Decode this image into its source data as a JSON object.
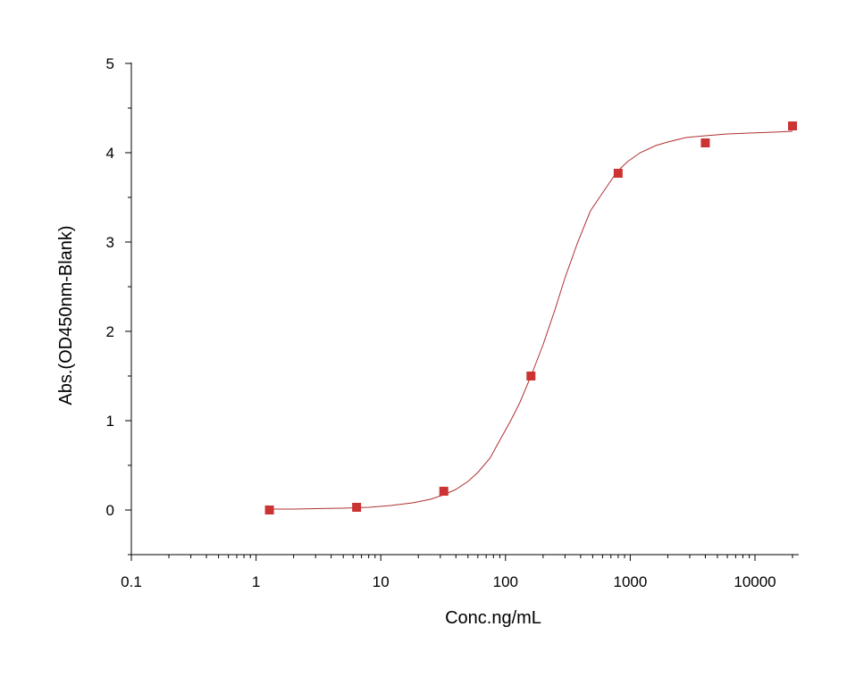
{
  "chart_data": {
    "type": "scatter",
    "xlabel": "Conc.ng/mL",
    "ylabel": "Abs.(OD450nm-Blank)",
    "x_scale": "log",
    "xlim": [
      0.1,
      20000
    ],
    "ylim": [
      -0.5,
      5
    ],
    "x_ticks": [
      0.1,
      1,
      10,
      100,
      1000,
      10000
    ],
    "x_tick_labels": [
      "0.1",
      "1",
      "10",
      "100",
      "1000",
      "10000"
    ],
    "y_ticks": [
      0,
      1,
      2,
      3,
      4,
      5
    ],
    "y_tick_labels": [
      "0",
      "1",
      "2",
      "3",
      "4",
      "5"
    ],
    "grid": false,
    "colors": {
      "points": "#cc3333",
      "curve": "#b03030",
      "axes": "#000000"
    },
    "series": [
      {
        "kind": "points",
        "x": [
          1.28,
          6.4,
          32,
          160,
          800,
          4000,
          20000
        ],
        "y": [
          0.0,
          0.03,
          0.21,
          1.5,
          3.77,
          4.11,
          4.3
        ]
      },
      {
        "kind": "fitted-curve",
        "x": [
          1.28,
          2,
          3,
          5,
          8,
          12,
          18,
          25,
          32,
          40,
          50,
          60,
          75,
          90,
          110,
          130,
          160,
          200,
          250,
          300,
          380,
          480,
          600,
          750,
          800,
          950,
          1200,
          1600,
          2000,
          2800,
          4000,
          6000,
          9000,
          14000,
          20000
        ],
        "y": [
          0.01,
          0.01,
          0.015,
          0.02,
          0.03,
          0.05,
          0.08,
          0.12,
          0.17,
          0.23,
          0.32,
          0.42,
          0.58,
          0.78,
          1.0,
          1.2,
          1.5,
          1.85,
          2.25,
          2.6,
          3.0,
          3.35,
          3.55,
          3.75,
          3.8,
          3.9,
          4.0,
          4.08,
          4.12,
          4.17,
          4.19,
          4.21,
          4.22,
          4.23,
          4.24
        ]
      }
    ]
  }
}
